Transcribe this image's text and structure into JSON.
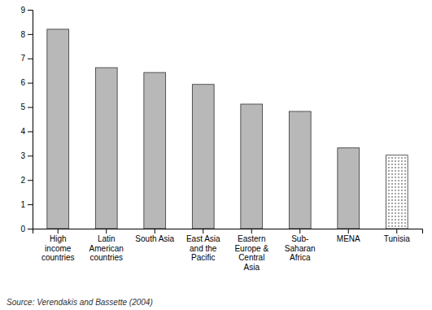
{
  "chart_data": {
    "type": "bar",
    "categories": [
      "High\nincome\ncountries",
      "Latin\nAmerican\ncountries",
      "South Asia",
      "East Asia\nand the\nPacific",
      "Eastern\nEurope &\nCentral\nAsia",
      "Sub-\nSaharan\nAfrica",
      "MENA",
      "Tunisia"
    ],
    "values": [
      8.2,
      6.62,
      6.42,
      5.93,
      5.12,
      4.82,
      3.32,
      3.02
    ],
    "colors": [
      "#b8b8b8",
      "#b8b8b8",
      "#b8b8b8",
      "#b8b8b8",
      "#b8b8b8",
      "#b8b8b8",
      "#b8b8b8",
      "#ffffff"
    ],
    "ylim": [
      0,
      9
    ],
    "yticks": [
      0,
      1,
      2,
      3,
      4,
      5,
      6,
      7,
      8,
      9
    ],
    "grid": false,
    "annotations": [
      "Source: Verendakis and Bassette (2004)"
    ]
  }
}
